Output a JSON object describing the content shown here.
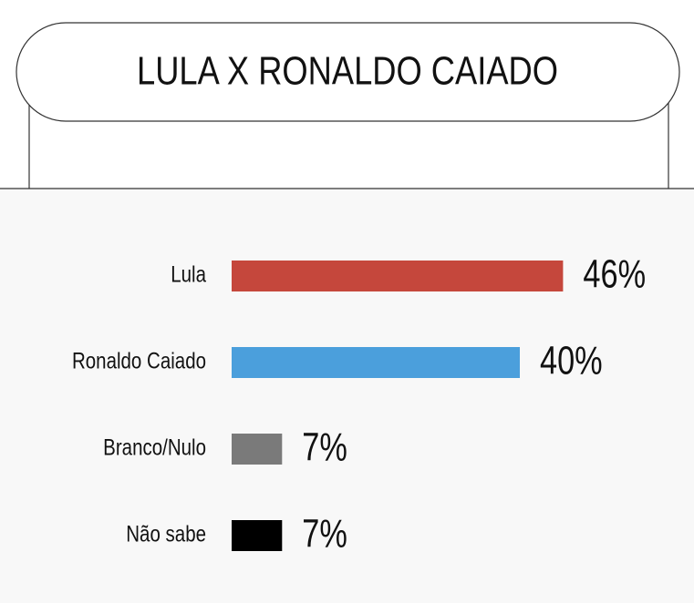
{
  "chart_data": {
    "type": "bar",
    "title": "LULA X RONALDO CAIADO",
    "categories": [
      "Lula",
      "Ronaldo Caiado",
      "Branco/Nulo",
      "Não sabe"
    ],
    "values": [
      46,
      40,
      7,
      7
    ],
    "value_labels": [
      "46%",
      "40%",
      "7%",
      "7%"
    ],
    "colors": [
      "#c5473c",
      "#4b9fdc",
      "#7a7a7a",
      "#000000"
    ]
  }
}
